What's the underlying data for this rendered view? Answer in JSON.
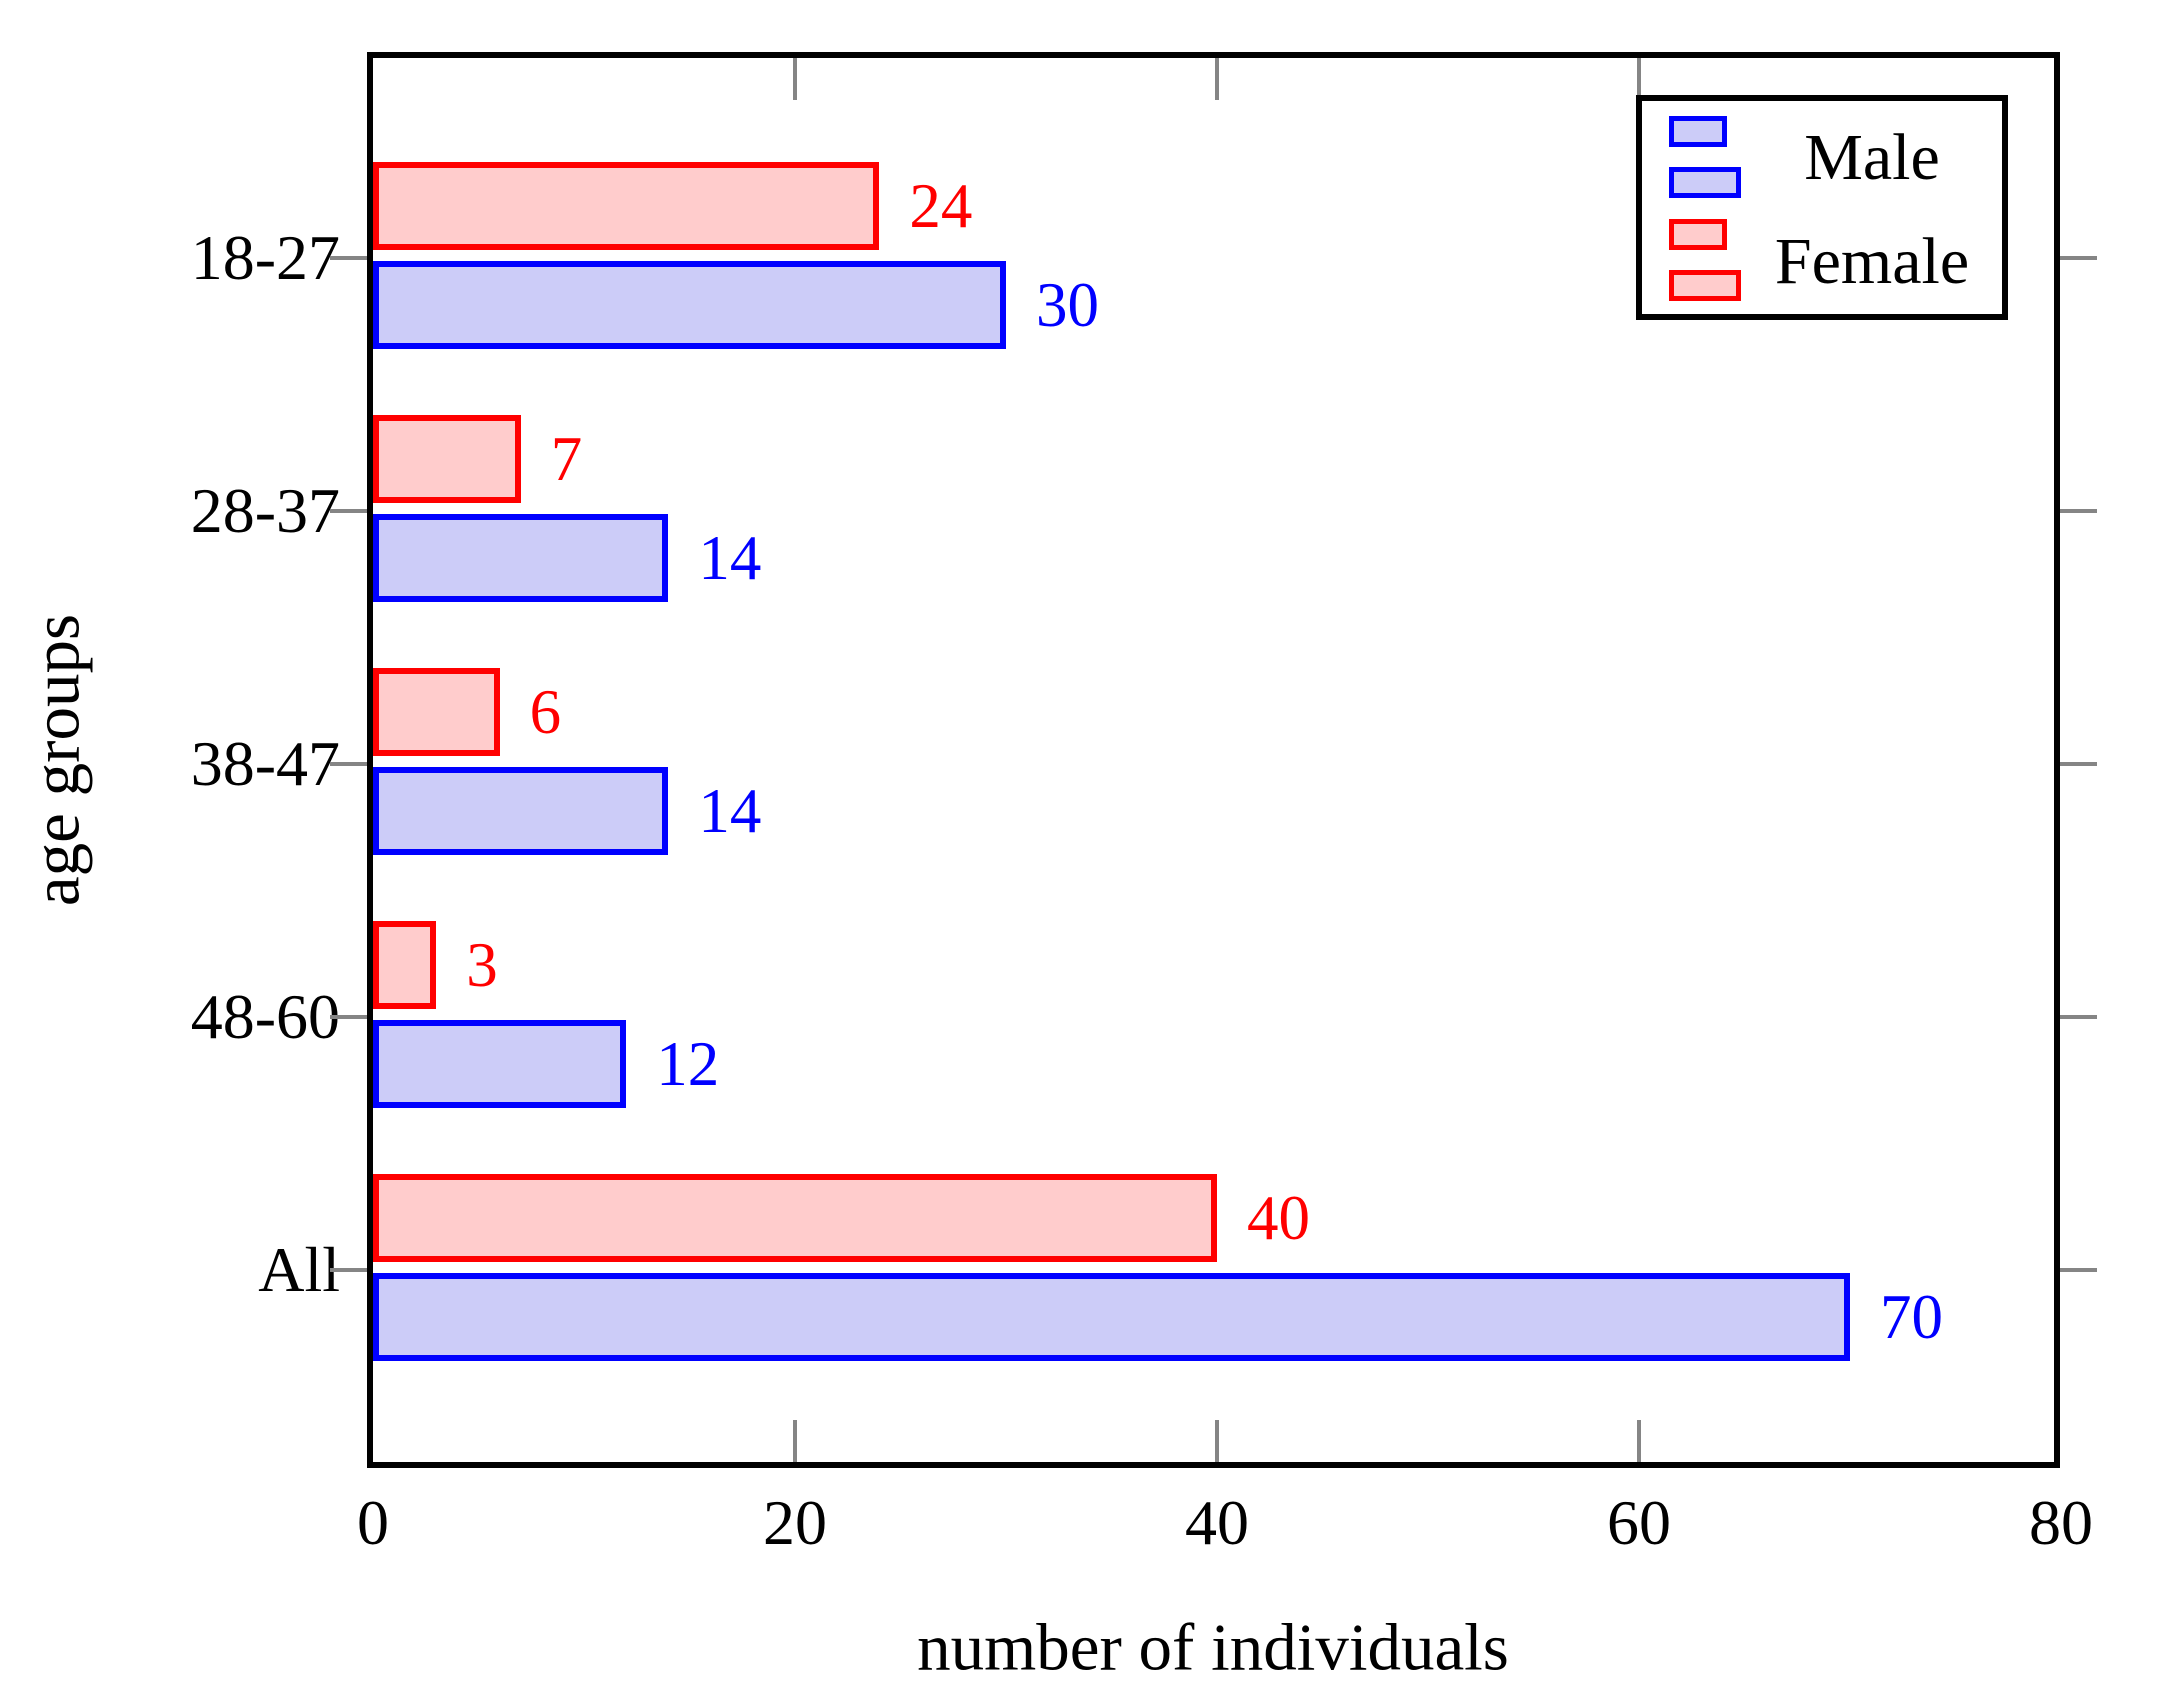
{
  "chart_data": {
    "type": "bar",
    "orientation": "horizontal",
    "title": "",
    "xlabel": "number of individuals",
    "ylabel": "age groups",
    "categories": [
      "18-27",
      "28-37",
      "38-47",
      "48-60",
      "All"
    ],
    "series": [
      {
        "name": "Male",
        "color": "#0000ff",
        "fill": "#ccccf8",
        "values": [
          30,
          14,
          14,
          12,
          70
        ]
      },
      {
        "name": "Female",
        "color": "#ff0000",
        "fill": "#ffcccc",
        "values": [
          24,
          7,
          6,
          3,
          40
        ]
      }
    ],
    "value_labels_shown": true,
    "xlim": [
      0,
      80
    ],
    "xticks": [
      0,
      20,
      40,
      60,
      80
    ],
    "grid": false,
    "legend_position": "top-right",
    "colors": {
      "axis": "#000000",
      "tick_mark": "#858585",
      "background": "#ffffff"
    }
  }
}
